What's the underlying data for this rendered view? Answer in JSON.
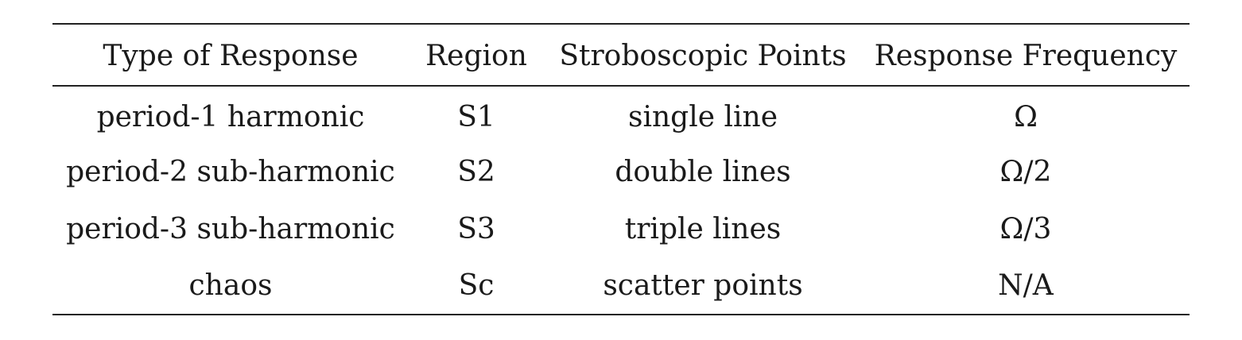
{
  "table": {
    "headers": [
      "Type of Response",
      "Region",
      "Stroboscopic Points",
      "Response Frequency"
    ],
    "rows": [
      [
        "period-1 harmonic",
        "S1",
        "single line",
        "Ω"
      ],
      [
        "period-2 sub-harmonic",
        "S2",
        "double lines",
        "Ω/2"
      ],
      [
        "period-3 sub-harmonic",
        "S3",
        "triple lines",
        "Ω/3"
      ],
      [
        "chaos",
        "Sc",
        "scatter points",
        "N/A"
      ]
    ]
  }
}
